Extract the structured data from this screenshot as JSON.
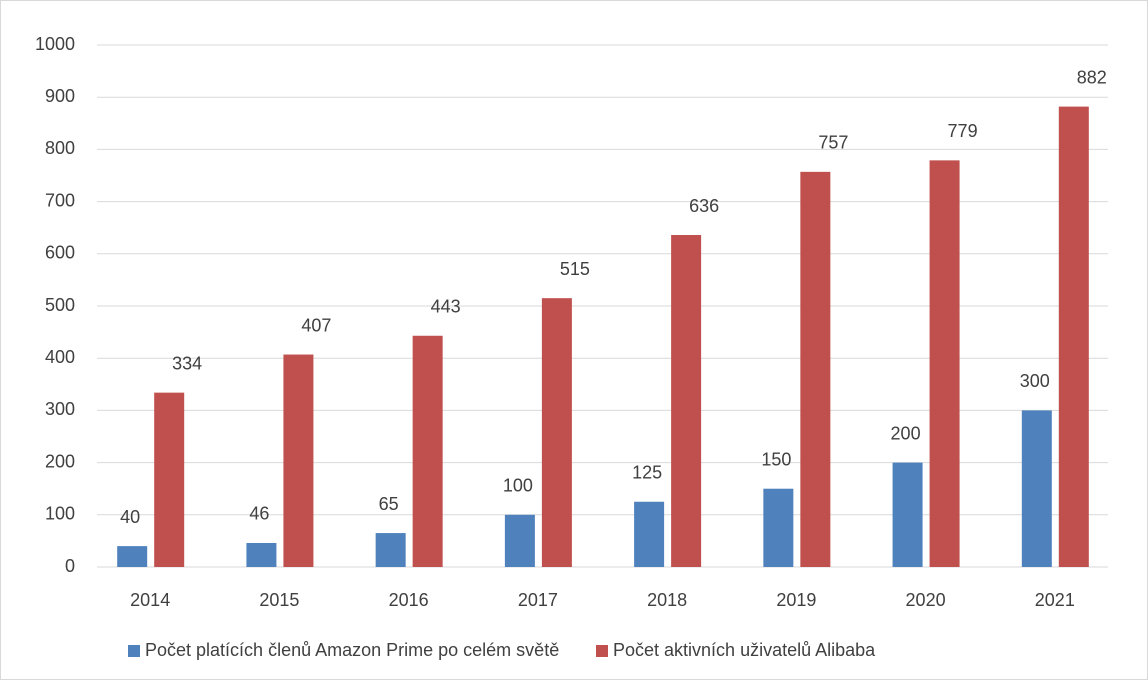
{
  "chart_data": {
    "type": "bar",
    "categories": [
      "2014",
      "2015",
      "2016",
      "2017",
      "2018",
      "2019",
      "2020",
      "2021"
    ],
    "series": [
      {
        "name": "Počet platících členů Amazon Prime po celém světě",
        "color": "#4f81bd",
        "values": [
          40,
          46,
          65,
          100,
          125,
          150,
          200,
          300
        ]
      },
      {
        "name": "Počet aktivních uživatelů Alibaba",
        "color": "#c0504d",
        "values": [
          334,
          407,
          443,
          515,
          636,
          757,
          779,
          882
        ]
      }
    ],
    "ylim": [
      0,
      1000
    ],
    "yticks": [
      0,
      100,
      200,
      300,
      400,
      500,
      600,
      700,
      800,
      900,
      1000
    ],
    "grid": true,
    "legend": "bottom"
  }
}
